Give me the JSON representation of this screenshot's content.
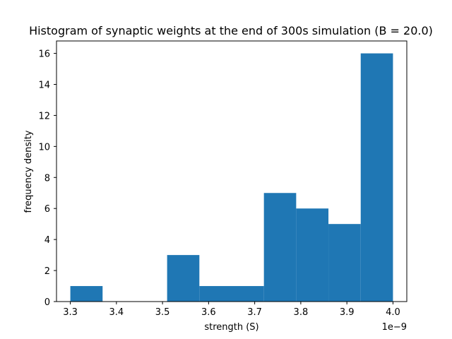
{
  "chart_data": {
    "type": "histogram",
    "title": "Histogram of synaptic weights at the end of 300s simulation (B = 20.0)",
    "xlabel": "strength (S)",
    "ylabel": "frequency density",
    "x_offset_label": "1e−9",
    "xlim": [
      3.27,
      4.03
    ],
    "ylim": [
      0,
      16.8
    ],
    "bar_color": "#1f77b4",
    "bins": [
      {
        "start": 3.3,
        "end": 3.37,
        "value": 1
      },
      {
        "start": 3.37,
        "end": 3.44,
        "value": 0
      },
      {
        "start": 3.44,
        "end": 3.51,
        "value": 0
      },
      {
        "start": 3.51,
        "end": 3.58,
        "value": 3
      },
      {
        "start": 3.58,
        "end": 3.65,
        "value": 1
      },
      {
        "start": 3.65,
        "end": 3.72,
        "value": 1
      },
      {
        "start": 3.72,
        "end": 3.79,
        "value": 7
      },
      {
        "start": 3.79,
        "end": 3.86,
        "value": 6
      },
      {
        "start": 3.86,
        "end": 3.93,
        "value": 5
      },
      {
        "start": 3.93,
        "end": 4.0,
        "value": 16
      }
    ],
    "xticks": [
      "3.3",
      "3.4",
      "3.5",
      "3.6",
      "3.7",
      "3.8",
      "3.9",
      "4.0"
    ],
    "yticks": [
      "0",
      "2",
      "4",
      "6",
      "8",
      "10",
      "12",
      "14",
      "16"
    ],
    "grid": false,
    "legend": "none"
  }
}
